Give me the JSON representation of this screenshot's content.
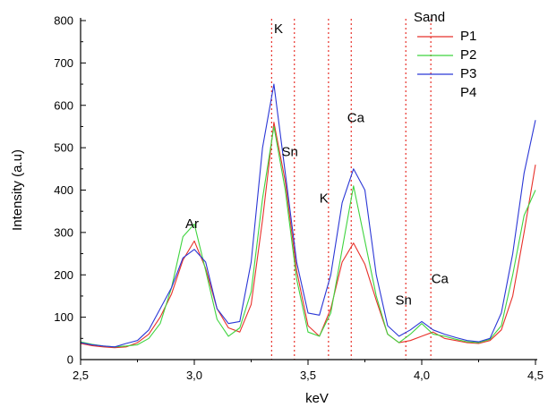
{
  "chart_data": {
    "type": "line",
    "xlabel": "keV",
    "ylabel": "Intensity (a.u)",
    "xlim": [
      2.5,
      4.5
    ],
    "ylim": [
      0,
      800
    ],
    "x_ticks": [
      {
        "value": 2.5,
        "label": "2,5"
      },
      {
        "value": 3.0,
        "label": "3,0"
      },
      {
        "value": 3.5,
        "label": "3,5"
      },
      {
        "value": 4.0,
        "label": "4,0"
      },
      {
        "value": 4.5,
        "label": "4,5"
      }
    ],
    "y_ticks": [
      0,
      100,
      200,
      300,
      400,
      500,
      600,
      700,
      800
    ],
    "grid": false,
    "legend": {
      "title": "Sand",
      "placement": "top-right",
      "entries": [
        {
          "name": "P1",
          "color": "#e8312a"
        },
        {
          "name": "P2",
          "color": "#3fd43f"
        },
        {
          "name": "P3",
          "color": "#2b37d6"
        },
        {
          "name": "P4",
          "color": null
        }
      ]
    },
    "x": [
      2.5,
      2.55,
      2.6,
      2.65,
      2.7,
      2.75,
      2.8,
      2.85,
      2.9,
      2.95,
      3.0,
      3.05,
      3.1,
      3.15,
      3.2,
      3.25,
      3.3,
      3.35,
      3.4,
      3.45,
      3.5,
      3.55,
      3.6,
      3.65,
      3.7,
      3.75,
      3.8,
      3.85,
      3.9,
      3.95,
      4.0,
      4.05,
      4.1,
      4.15,
      4.2,
      4.25,
      4.3,
      4.35,
      4.4,
      4.45,
      4.5
    ],
    "series": [
      {
        "name": "P1",
        "color": "#e8312a",
        "values": [
          38,
          33,
          30,
          28,
          30,
          40,
          60,
          100,
          155,
          235,
          280,
          215,
          120,
          75,
          65,
          130,
          330,
          560,
          420,
          210,
          80,
          55,
          120,
          230,
          275,
          225,
          140,
          60,
          40,
          45,
          55,
          65,
          50,
          45,
          40,
          38,
          45,
          70,
          150,
          300,
          460
        ]
      },
      {
        "name": "P2",
        "color": "#3fd43f",
        "values": [
          42,
          36,
          32,
          30,
          32,
          35,
          50,
          85,
          170,
          290,
          320,
          210,
          95,
          55,
          75,
          160,
          380,
          550,
          400,
          190,
          65,
          55,
          110,
          260,
          410,
          280,
          150,
          60,
          40,
          60,
          85,
          60,
          55,
          48,
          42,
          40,
          48,
          80,
          200,
          340,
          400
        ]
      },
      {
        "name": "P3",
        "color": "#2b37d6",
        "values": [
          40,
          35,
          32,
          30,
          38,
          45,
          70,
          120,
          170,
          240,
          260,
          230,
          120,
          85,
          90,
          230,
          500,
          650,
          440,
          230,
          110,
          105,
          200,
          370,
          450,
          400,
          200,
          80,
          55,
          70,
          90,
          70,
          60,
          52,
          45,
          42,
          50,
          110,
          250,
          440,
          565
        ]
      }
    ],
    "markers": [
      {
        "x": 3.34,
        "label": "K",
        "color": "#e8312a"
      },
      {
        "x": 3.44,
        "label": "Sn",
        "color": "#e8312a"
      },
      {
        "x": 3.69,
        "label": "Ca",
        "color": "#e8312a"
      },
      {
        "x": 3.59,
        "label": "K",
        "color": "#e8312a"
      },
      {
        "x": 3.93,
        "label": "Sn",
        "color": "#e8312a"
      },
      {
        "x": 4.04,
        "label": "Ca",
        "color": "#e8312a"
      }
    ],
    "annotations": [
      {
        "text": "Ar",
        "x": 2.99,
        "y": 310
      },
      {
        "text": "K",
        "x": 3.37,
        "y": 770
      },
      {
        "text": "Sn",
        "x": 3.42,
        "y": 480
      },
      {
        "text": "Ca",
        "x": 3.71,
        "y": 560
      },
      {
        "text": "K",
        "x": 3.57,
        "y": 370
      },
      {
        "text": "Sn",
        "x": 3.92,
        "y": 130
      },
      {
        "text": "Ca",
        "x": 4.08,
        "y": 180
      }
    ]
  }
}
